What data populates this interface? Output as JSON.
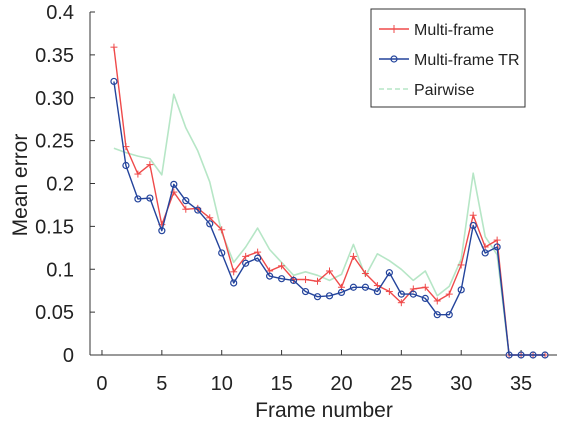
{
  "chart_data": {
    "type": "line",
    "title": "",
    "xlabel": "Frame number",
    "ylabel": "Mean error",
    "xlim": [
      -1,
      38
    ],
    "ylim": [
      0,
      0.4
    ],
    "x_ticks": [
      0,
      5,
      10,
      15,
      20,
      25,
      30,
      35
    ],
    "y_ticks": [
      0,
      0.05,
      0.1,
      0.15,
      0.2,
      0.25,
      0.3,
      0.35,
      0.4
    ],
    "y_tick_labels": [
      "0",
      "0.05",
      "0.1",
      "0.15",
      "0.2",
      "0.25",
      "0.30",
      "0.35",
      "0.4"
    ],
    "grid": false,
    "legend_position": "top-right",
    "x": [
      1,
      2,
      3,
      4,
      5,
      6,
      7,
      8,
      9,
      10,
      11,
      12,
      13,
      14,
      15,
      16,
      17,
      18,
      19,
      20,
      21,
      22,
      23,
      24,
      25,
      26,
      27,
      28,
      29,
      30,
      31,
      32,
      33,
      34,
      35,
      36,
      37
    ],
    "series": [
      {
        "name": "Multi-frame",
        "color": "#ef4a4a",
        "marker": "plus",
        "values": [
          0.359,
          0.243,
          0.211,
          0.222,
          0.152,
          0.19,
          0.17,
          0.171,
          0.16,
          0.146,
          0.097,
          0.115,
          0.12,
          0.098,
          0.104,
          0.088,
          0.088,
          0.086,
          0.098,
          0.079,
          0.115,
          0.095,
          0.081,
          0.074,
          0.061,
          0.077,
          0.079,
          0.063,
          0.071,
          0.105,
          0.163,
          0.126,
          0.134,
          0,
          0,
          0,
          0
        ]
      },
      {
        "name": "Multi-frame TR",
        "color": "#24449c",
        "marker": "circle",
        "values": [
          0.319,
          0.221,
          0.182,
          0.183,
          0.145,
          0.199,
          0.18,
          0.169,
          0.153,
          0.119,
          0.084,
          0.107,
          0.113,
          0.092,
          0.089,
          0.087,
          0.074,
          0.068,
          0.069,
          0.073,
          0.079,
          0.079,
          0.074,
          0.096,
          0.071,
          0.071,
          0.066,
          0.047,
          0.047,
          0.076,
          0.151,
          0.119,
          0.126,
          0,
          0,
          0,
          0
        ]
      },
      {
        "name": "Pairwise",
        "color": "#b6e6c6",
        "marker": "dash",
        "values": [
          0.241,
          0.236,
          0.232,
          0.229,
          0.21,
          0.304,
          0.265,
          0.238,
          0.202,
          0.143,
          0.108,
          0.126,
          0.148,
          0.123,
          0.108,
          0.093,
          0.097,
          0.093,
          0.087,
          0.094,
          0.129,
          0.092,
          0.118,
          0.11,
          0.1,
          0.087,
          0.098,
          0.069,
          0.08,
          0.112,
          0.212,
          0.138,
          0.117,
          0,
          0,
          0,
          0
        ]
      }
    ]
  }
}
